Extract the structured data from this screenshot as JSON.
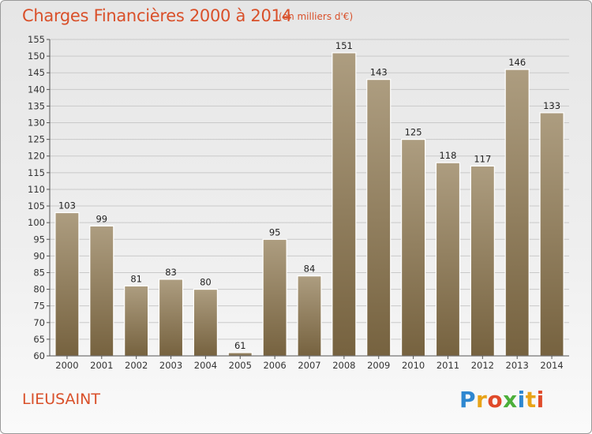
{
  "header": {
    "title": "Charges Financières 2000 à 2014",
    "subtitle": "(en milliers d'€)"
  },
  "footer": {
    "commune": "LIEUSAINT",
    "logo_letters": [
      "P",
      "r",
      "o",
      "x",
      "i",
      "t",
      "i"
    ],
    "logo_colors": [
      "#2e87d0",
      "#e8a317",
      "#e04a2a",
      "#4caf3a",
      "#2e87d0",
      "#e8a317",
      "#e04a2a"
    ]
  },
  "colors": {
    "title": "#d9502a",
    "bar_light": "#ad9d80",
    "bar_dark": "#76623f",
    "grid": "#c9c9c9"
  },
  "chart_data": {
    "type": "bar",
    "title": "Charges Financières 2000 à 2014",
    "subtitle": "(en milliers d'€)",
    "xlabel": "",
    "ylabel": "",
    "categories": [
      "2000",
      "2001",
      "2002",
      "2003",
      "2004",
      "2005",
      "2006",
      "2007",
      "2008",
      "2009",
      "2010",
      "2011",
      "2012",
      "2013",
      "2014"
    ],
    "values": [
      103,
      99,
      81,
      83,
      80,
      61,
      95,
      84,
      151,
      143,
      125,
      118,
      117,
      146,
      133
    ],
    "ylim": [
      60,
      155
    ],
    "yticks": [
      60,
      65,
      70,
      75,
      80,
      85,
      90,
      95,
      100,
      105,
      110,
      115,
      120,
      125,
      130,
      135,
      140,
      145,
      150,
      155
    ],
    "grid": true,
    "data_labels": true
  }
}
